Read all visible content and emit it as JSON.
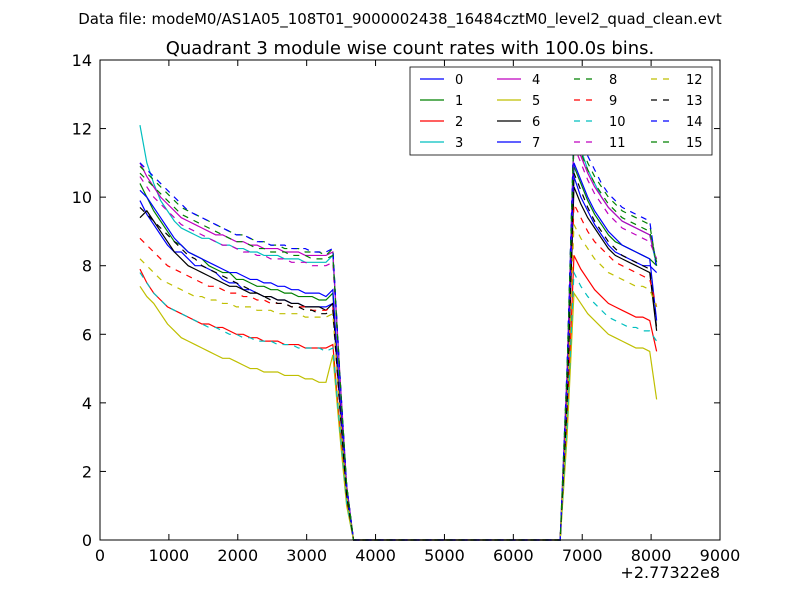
{
  "chart_data": {
    "type": "line",
    "supertitle": "Data file: modeM0/AS1A05_108T01_9000002438_16484cztM0_level2_quad_clean.evt",
    "title": "Quadrant 3 module wise count rates with 100.0s bins.",
    "xlabel": "",
    "ylabel": "",
    "x_offset_label": "+2.77322e8",
    "xlim": [
      0,
      9000
    ],
    "ylim": [
      0,
      14
    ],
    "xticks": [
      0,
      1000,
      2000,
      3000,
      4000,
      5000,
      6000,
      7000,
      8000,
      9000
    ],
    "yticks": [
      0,
      2,
      4,
      6,
      8,
      10,
      12,
      14
    ],
    "grid": false,
    "legend": {
      "placement": "top-right",
      "columns": 4
    },
    "x": [
      580,
      680,
      780,
      880,
      980,
      1080,
      1180,
      1280,
      1380,
      1480,
      1580,
      1680,
      1780,
      1880,
      1980,
      2080,
      2180,
      2280,
      2380,
      2480,
      2580,
      2680,
      2780,
      2880,
      2980,
      3080,
      3180,
      3280,
      3380,
      3480,
      3580,
      3680,
      6680,
      6780,
      6880,
      6980,
      7080,
      7180,
      7280,
      7380,
      7480,
      7580,
      7680,
      7780,
      7880,
      7980,
      8080
    ],
    "series": [
      {
        "name": "0",
        "color": "#0000ff",
        "dash": false,
        "values": [
          9.9,
          9.5,
          9.2,
          8.9,
          8.6,
          8.4,
          8.4,
          8.2,
          8.0,
          8.0,
          7.9,
          7.8,
          7.6,
          7.5,
          7.5,
          7.3,
          7.3,
          7.2,
          7.1,
          7.1,
          7.0,
          7.0,
          6.9,
          6.9,
          6.8,
          6.8,
          6.8,
          6.8,
          6.9,
          4.0,
          1.3,
          0,
          0,
          4.0,
          10.6,
          10.0,
          9.6,
          9.2,
          8.9,
          8.6,
          8.4,
          8.3,
          8.2,
          8.1,
          8.0,
          8.0,
          7.8
        ]
      },
      {
        "name": "1",
        "color": "#008000",
        "dash": false,
        "values": [
          10.4,
          10.0,
          9.6,
          9.3,
          9.0,
          8.7,
          8.6,
          8.4,
          8.3,
          8.2,
          8.0,
          7.9,
          7.8,
          7.8,
          7.6,
          7.6,
          7.5,
          7.4,
          7.4,
          7.3,
          7.3,
          7.2,
          7.2,
          7.1,
          7.1,
          7.1,
          7.0,
          7.0,
          7.2,
          4.1,
          1.4,
          0,
          0,
          4.1,
          10.9,
          10.4,
          9.9,
          9.5,
          9.2,
          8.9,
          8.7,
          8.6,
          8.5,
          8.4,
          8.3,
          8.2,
          8.0
        ]
      },
      {
        "name": "2",
        "color": "#ff0000",
        "dash": false,
        "values": [
          7.9,
          7.5,
          7.2,
          7.0,
          6.8,
          6.7,
          6.6,
          6.5,
          6.4,
          6.3,
          6.3,
          6.2,
          6.2,
          6.1,
          6.0,
          6.0,
          5.9,
          5.9,
          5.8,
          5.8,
          5.8,
          5.7,
          5.7,
          5.7,
          5.6,
          5.6,
          5.6,
          5.6,
          5.7,
          3.3,
          1.1,
          0,
          0,
          3.3,
          8.3,
          7.9,
          7.6,
          7.3,
          7.1,
          6.9,
          6.8,
          6.7,
          6.6,
          6.5,
          6.5,
          6.4,
          5.5
        ]
      },
      {
        "name": "3",
        "color": "#00bfbf",
        "dash": false,
        "values": [
          12.1,
          11.0,
          10.4,
          9.9,
          9.6,
          9.3,
          9.1,
          9.0,
          8.9,
          8.8,
          8.8,
          8.7,
          8.6,
          8.6,
          8.5,
          8.5,
          8.4,
          8.4,
          8.3,
          8.3,
          8.3,
          8.2,
          8.2,
          8.2,
          8.1,
          8.1,
          8.1,
          8.1,
          8.3,
          4.8,
          1.6,
          0,
          0,
          4.8,
          12.0,
          11.4,
          10.8,
          10.4,
          10.0,
          9.7,
          9.5,
          9.3,
          9.2,
          9.1,
          9.0,
          8.9,
          8.0
        ]
      },
      {
        "name": "4",
        "color": "#bf00bf",
        "dash": false,
        "values": [
          11.0,
          10.6,
          10.3,
          10.0,
          9.8,
          9.6,
          9.4,
          9.3,
          9.2,
          9.1,
          9.0,
          8.9,
          8.9,
          8.8,
          8.7,
          8.7,
          8.6,
          8.6,
          8.5,
          8.5,
          8.5,
          8.4,
          8.4,
          8.4,
          8.3,
          8.3,
          8.3,
          8.3,
          8.4,
          4.9,
          1.6,
          0,
          0,
          4.9,
          11.8,
          11.2,
          10.7,
          10.3,
          10.0,
          9.7,
          9.5,
          9.3,
          9.2,
          9.1,
          9.0,
          8.9,
          8.1
        ]
      },
      {
        "name": "5",
        "color": "#bfbf00",
        "dash": false,
        "values": [
          7.4,
          7.1,
          6.9,
          6.6,
          6.3,
          6.1,
          5.9,
          5.8,
          5.7,
          5.6,
          5.5,
          5.4,
          5.3,
          5.3,
          5.2,
          5.1,
          5.0,
          5.0,
          4.9,
          4.9,
          4.9,
          4.8,
          4.8,
          4.8,
          4.7,
          4.7,
          4.6,
          4.6,
          5.4,
          3.1,
          1.0,
          0,
          0,
          3.0,
          7.2,
          6.9,
          6.6,
          6.4,
          6.2,
          6.0,
          5.9,
          5.8,
          5.7,
          5.6,
          5.6,
          5.5,
          4.1
        ]
      },
      {
        "name": "6",
        "color": "#000000",
        "dash": false,
        "values": [
          9.4,
          9.6,
          9.3,
          9.0,
          8.7,
          8.4,
          8.2,
          8.0,
          7.9,
          7.8,
          7.7,
          7.6,
          7.5,
          7.4,
          7.4,
          7.3,
          7.2,
          7.2,
          7.1,
          7.1,
          7.0,
          7.0,
          6.9,
          6.9,
          6.8,
          6.8,
          6.8,
          6.7,
          6.9,
          4.0,
          1.3,
          0,
          0,
          4.0,
          10.3,
          9.8,
          9.4,
          9.1,
          8.8,
          8.5,
          8.3,
          8.2,
          8.1,
          8.0,
          7.9,
          7.8,
          6.1
        ]
      },
      {
        "name": "7",
        "color": "#0000ff",
        "dash": false,
        "values": [
          10.2,
          10.0,
          9.7,
          9.4,
          9.1,
          8.8,
          8.6,
          8.4,
          8.3,
          8.2,
          8.1,
          8.0,
          7.9,
          7.8,
          7.8,
          7.7,
          7.6,
          7.6,
          7.5,
          7.5,
          7.4,
          7.4,
          7.3,
          7.3,
          7.2,
          7.2,
          7.2,
          7.1,
          7.3,
          4.2,
          1.4,
          0,
          0,
          4.2,
          11.0,
          10.5,
          10.0,
          9.6,
          9.3,
          9.0,
          8.8,
          8.6,
          8.5,
          8.4,
          8.3,
          8.2,
          6.4
        ]
      },
      {
        "name": "8",
        "color": "#008000",
        "dash": true,
        "values": [
          10.9,
          10.7,
          10.5,
          10.3,
          10.1,
          9.9,
          9.7,
          9.6,
          9.5,
          9.4,
          9.3,
          9.2,
          9.1,
          9.0,
          8.9,
          8.9,
          8.8,
          8.7,
          8.7,
          8.6,
          8.6,
          8.5,
          8.5,
          8.5,
          8.4,
          8.4,
          8.4,
          8.3,
          8.5,
          4.9,
          1.6,
          0,
          0,
          5.0,
          12.1,
          11.5,
          11.0,
          10.6,
          10.3,
          10.0,
          9.8,
          9.6,
          9.5,
          9.4,
          9.3,
          9.2,
          8.0
        ]
      },
      {
        "name": "9",
        "color": "#ff0000",
        "dash": true,
        "values": [
          8.8,
          8.6,
          8.4,
          8.2,
          8.0,
          7.9,
          7.8,
          7.7,
          7.6,
          7.5,
          7.4,
          7.4,
          7.3,
          7.2,
          7.2,
          7.1,
          7.1,
          7.0,
          7.0,
          6.9,
          6.9,
          6.9,
          6.8,
          6.8,
          6.8,
          6.7,
          6.7,
          6.7,
          6.8,
          3.9,
          1.3,
          0,
          0,
          4.0,
          9.8,
          9.4,
          9.0,
          8.7,
          8.5,
          8.3,
          8.1,
          8.0,
          7.9,
          7.8,
          7.7,
          7.6,
          6.8
        ]
      },
      {
        "name": "10",
        "color": "#00bfbf",
        "dash": true,
        "values": [
          7.8,
          7.5,
          7.2,
          7.0,
          6.8,
          6.7,
          6.6,
          6.5,
          6.4,
          6.3,
          6.2,
          6.2,
          6.1,
          6.0,
          6.0,
          5.9,
          5.9,
          5.8,
          5.8,
          5.8,
          5.7,
          5.7,
          5.7,
          5.6,
          5.6,
          5.6,
          5.6,
          5.5,
          5.6,
          3.3,
          1.1,
          0,
          0,
          3.3,
          7.8,
          7.4,
          7.1,
          6.9,
          6.7,
          6.5,
          6.4,
          6.3,
          6.2,
          6.2,
          6.1,
          6.1,
          5.8
        ]
      },
      {
        "name": "11",
        "color": "#bf00bf",
        "dash": true,
        "values": [
          10.6,
          10.3,
          10.0,
          9.8,
          9.6,
          9.4,
          9.2,
          9.1,
          9.0,
          8.9,
          8.8,
          8.7,
          8.6,
          8.6,
          8.5,
          8.4,
          8.4,
          8.3,
          8.3,
          8.2,
          8.2,
          8.2,
          8.1,
          8.1,
          8.1,
          8.0,
          8.0,
          8.0,
          8.1,
          4.7,
          1.6,
          0,
          0,
          4.7,
          11.5,
          11.0,
          10.5,
          10.1,
          9.8,
          9.5,
          9.3,
          9.1,
          9.0,
          8.9,
          8.8,
          8.7,
          8.2
        ]
      },
      {
        "name": "12",
        "color": "#bfbf00",
        "dash": true,
        "values": [
          8.2,
          8.0,
          7.8,
          7.6,
          7.5,
          7.4,
          7.3,
          7.2,
          7.1,
          7.1,
          7.0,
          7.0,
          6.9,
          6.9,
          6.8,
          6.8,
          6.8,
          6.7,
          6.7,
          6.7,
          6.6,
          6.6,
          6.6,
          6.6,
          6.5,
          6.5,
          6.5,
          6.5,
          6.6,
          3.8,
          1.3,
          0,
          0,
          3.8,
          9.2,
          8.8,
          8.5,
          8.2,
          8.0,
          7.8,
          7.7,
          7.6,
          7.5,
          7.4,
          7.4,
          7.3,
          6.8
        ]
      },
      {
        "name": "13",
        "color": "#000000",
        "dash": true,
        "values": [
          9.7,
          9.5,
          9.3,
          9.1,
          8.9,
          8.7,
          8.5,
          8.3,
          8.2,
          8.0,
          7.9,
          7.8,
          7.7,
          7.6,
          7.5,
          7.4,
          7.3,
          7.2,
          7.1,
          7.0,
          6.9,
          6.9,
          6.8,
          6.8,
          6.7,
          6.7,
          6.6,
          6.6,
          6.7,
          3.9,
          1.3,
          0,
          0,
          4.0,
          10.7,
          10.2,
          9.7,
          9.3,
          9.0,
          8.7,
          8.5,
          8.3,
          8.2,
          8.1,
          8.0,
          7.9,
          6.2
        ]
      },
      {
        "name": "14",
        "color": "#0000ff",
        "dash": true,
        "values": [
          11.0,
          10.8,
          10.6,
          10.4,
          10.2,
          10.0,
          9.8,
          9.6,
          9.5,
          9.4,
          9.3,
          9.2,
          9.1,
          9.0,
          8.9,
          8.9,
          8.8,
          8.7,
          8.7,
          8.6,
          8.6,
          8.6,
          8.5,
          8.5,
          8.5,
          8.4,
          8.4,
          8.4,
          8.5,
          4.9,
          1.6,
          0,
          0,
          5.0,
          12.0,
          11.6,
          11.2,
          10.8,
          10.4,
          10.1,
          9.9,
          9.7,
          9.6,
          9.5,
          9.4,
          9.3,
          7.9
        ]
      },
      {
        "name": "15",
        "color": "#008000",
        "dash": true,
        "values": [
          10.7,
          10.5,
          10.3,
          10.1,
          9.9,
          9.7,
          9.5,
          9.4,
          9.3,
          9.2,
          9.1,
          9.0,
          8.9,
          8.8,
          8.7,
          8.7,
          8.6,
          8.5,
          8.5,
          8.4,
          8.4,
          8.4,
          8.3,
          8.3,
          8.3,
          8.2,
          8.2,
          8.2,
          8.3,
          4.8,
          1.6,
          0,
          0,
          4.9,
          11.8,
          11.3,
          10.8,
          10.4,
          10.1,
          9.8,
          9.6,
          9.4,
          9.3,
          9.2,
          9.1,
          9.0,
          8.1
        ]
      }
    ]
  }
}
